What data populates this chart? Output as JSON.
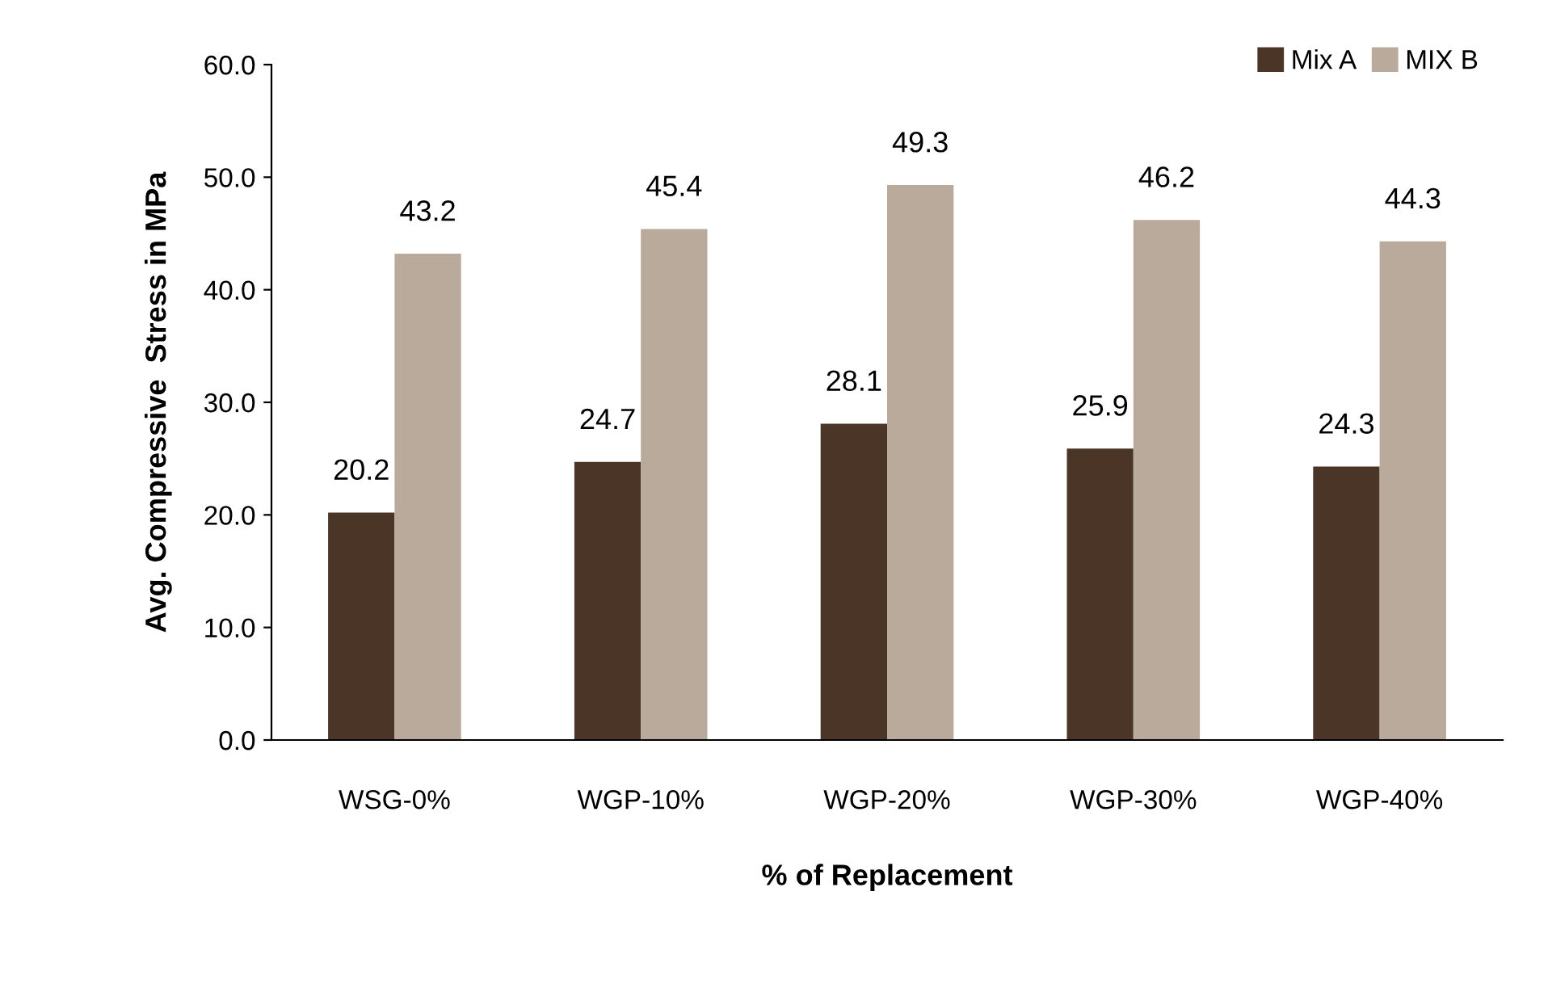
{
  "chart_data": {
    "type": "bar",
    "xlabel": "% of Replacement",
    "ylabel": "Avg. Compressive  Stress in MPa",
    "categories": [
      "WSG-0%",
      "WGP-10%",
      "WGP-20%",
      "WGP-30%",
      "WGP-40%"
    ],
    "series": [
      {
        "name": "Mix A",
        "color": "#4b3526",
        "values": [
          20.2,
          24.7,
          28.1,
          25.9,
          24.3
        ]
      },
      {
        "name": "MIX B",
        "color": "#b9aa9c",
        "values": [
          43.2,
          45.4,
          49.3,
          46.2,
          44.3
        ]
      }
    ],
    "ylim": [
      0,
      60
    ],
    "yticks": [
      {
        "value": 0,
        "label": "0.0"
      },
      {
        "value": 10,
        "label": "10.0"
      },
      {
        "value": 20,
        "label": "20.0"
      },
      {
        "value": 30,
        "label": "30.0"
      },
      {
        "value": 40,
        "label": "40.0"
      },
      {
        "value": 50,
        "label": "50.0"
      },
      {
        "value": 60,
        "label": "60.0"
      }
    ],
    "data_labels": true,
    "legend": "top right",
    "grid": false
  }
}
